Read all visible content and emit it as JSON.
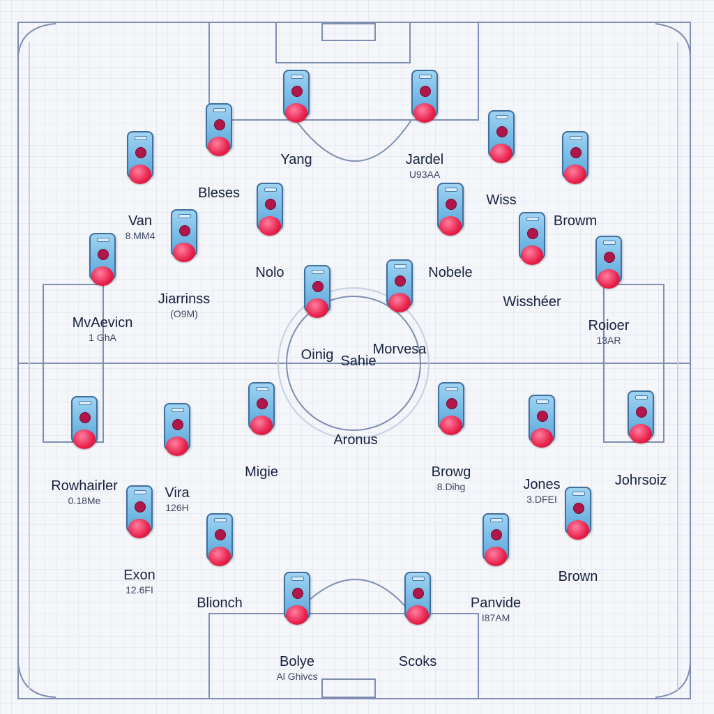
{
  "players": [
    {
      "name": "Yang",
      "sub": ""
    },
    {
      "name": "Jardel",
      "sub": "U93AA"
    },
    {
      "name": "Bleses",
      "sub": ""
    },
    {
      "name": "Wiss",
      "sub": ""
    },
    {
      "name": "Van",
      "sub": "8.MM4"
    },
    {
      "name": "Browm",
      "sub": ""
    },
    {
      "name": "Nolo",
      "sub": ""
    },
    {
      "name": "Nobele",
      "sub": ""
    },
    {
      "name": "Jiarrinss",
      "sub": "(O9M)"
    },
    {
      "name": "Wisshéer",
      "sub": ""
    },
    {
      "name": "MvAevicn",
      "sub": "1 GhA"
    },
    {
      "name": "Roioer",
      "sub": "13AR"
    },
    {
      "name": "Oinig",
      "sub": ""
    },
    {
      "name": "Morvesa",
      "sub": ""
    },
    {
      "name": "Migie",
      "sub": ""
    },
    {
      "name": "Browg",
      "sub": "8.Dihg"
    },
    {
      "name": "Rowhairler",
      "sub": "0.18Me"
    },
    {
      "name": "Vira",
      "sub": "126H"
    },
    {
      "name": "Jones",
      "sub": "3.DFEI"
    },
    {
      "name": "Johrsoiz",
      "sub": ""
    },
    {
      "name": "Exon",
      "sub": "12.6FI"
    },
    {
      "name": "Blionch",
      "sub": ""
    },
    {
      "name": "Panvide",
      "sub": "I87AM"
    },
    {
      "name": "Brown",
      "sub": ""
    },
    {
      "name": "Bolye",
      "sub": "Al Ghivcs"
    },
    {
      "name": "Scoks",
      "sub": ""
    }
  ],
  "labels": {
    "center": "Sahie",
    "midfield": "Aronus"
  },
  "colors": {
    "pitch_line": "#7f8db0",
    "grid": "#d9e0ec",
    "token": "#5aa8dc",
    "ball": "#e8204a",
    "dot": "#b0164a"
  }
}
